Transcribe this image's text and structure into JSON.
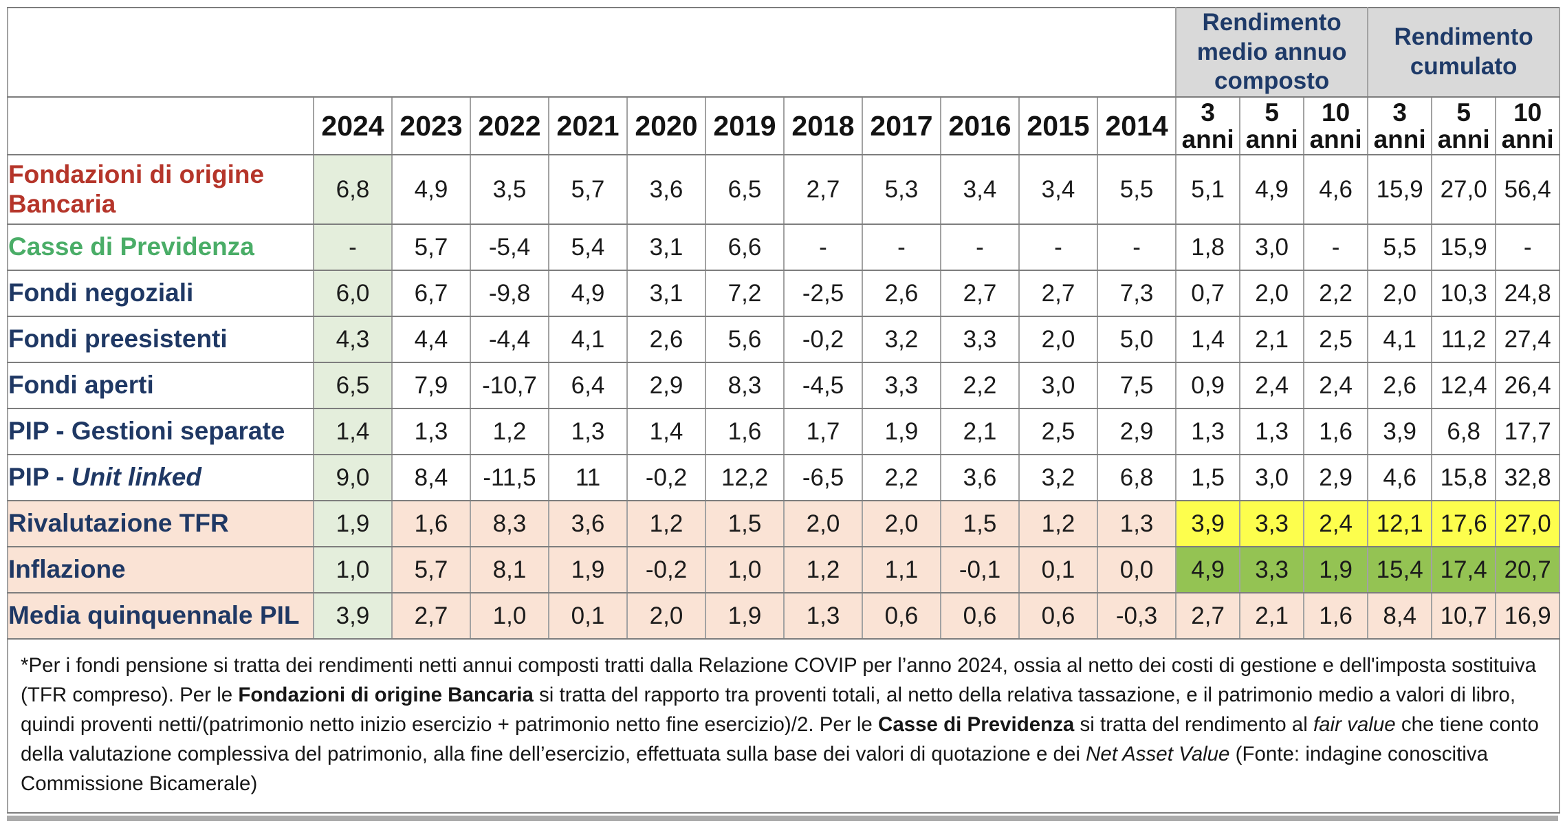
{
  "colors": {
    "navy_label": "#1f3864",
    "red_label": "#b5352a",
    "green_label": "#4aad67",
    "header_text": "#1e3a68",
    "header_bg": "#d9d9d9",
    "col_2024_bg": "#e4eedc",
    "peach_row_bg": "#fae3d5",
    "yellow_highlight": "#fdfe4d",
    "green_highlight": "#94c353"
  },
  "chart_data": {
    "type": "table",
    "title": "",
    "header_groups": [
      {
        "label": "Rendimento medio annuo composto",
        "span": 3
      },
      {
        "label": "Rendimento cumulato",
        "span": 3
      }
    ],
    "years": [
      "2024",
      "2023",
      "2022",
      "2021",
      "2020",
      "2019",
      "2018",
      "2017",
      "2016",
      "2015",
      "2014"
    ],
    "periods": [
      {
        "n": "3",
        "unit": "anni",
        "group": "Rendimento medio annuo composto"
      },
      {
        "n": "5",
        "unit": "anni",
        "group": "Rendimento medio annuo composto"
      },
      {
        "n": "10",
        "unit": "anni",
        "group": "Rendimento medio annuo composto"
      },
      {
        "n": "3",
        "unit": "anni",
        "group": "Rendimento cumulato"
      },
      {
        "n": "5",
        "unit": "anni",
        "group": "Rendimento cumulato"
      },
      {
        "n": "10",
        "unit": "anni",
        "group": "Rendimento cumulato"
      }
    ],
    "rows": [
      {
        "label": "Fondazioni di origine Bancaria",
        "label_color": "red_label",
        "band": "white",
        "highlight": null,
        "tall": true,
        "values": [
          "6,8",
          "4,9",
          "3,5",
          "5,7",
          "3,6",
          "6,5",
          "2,7",
          "5,3",
          "3,4",
          "3,4",
          "5,5",
          "5,1",
          "4,9",
          "4,6",
          "15,9",
          "27,0",
          "56,4"
        ]
      },
      {
        "label": "Casse di Previdenza",
        "label_color": "green_label",
        "band": "white",
        "highlight": null,
        "values": [
          "-",
          "5,7",
          "-5,4",
          "5,4",
          "3,1",
          "6,6",
          "-",
          "-",
          "-",
          "-",
          "-",
          "1,8",
          "3,0",
          "-",
          "5,5",
          "15,9",
          "-"
        ]
      },
      {
        "label": "Fondi negoziali",
        "label_color": "navy_label",
        "band": "white",
        "highlight": null,
        "values": [
          "6,0",
          "6,7",
          "-9,8",
          "4,9",
          "3,1",
          "7,2",
          "-2,5",
          "2,6",
          "2,7",
          "2,7",
          "7,3",
          "0,7",
          "2,0",
          "2,2",
          "2,0",
          "10,3",
          "24,8"
        ]
      },
      {
        "label": "Fondi preesistenti",
        "label_color": "navy_label",
        "band": "white",
        "highlight": null,
        "values": [
          "4,3",
          "4,4",
          "-4,4",
          "4,1",
          "2,6",
          "5,6",
          "-0,2",
          "3,2",
          "3,3",
          "2,0",
          "5,0",
          "1,4",
          "2,1",
          "2,5",
          "4,1",
          "11,2",
          "27,4"
        ]
      },
      {
        "label": "Fondi aperti",
        "label_color": "navy_label",
        "band": "white",
        "highlight": null,
        "values": [
          "6,5",
          "7,9",
          "-10,7",
          "6,4",
          "2,9",
          "8,3",
          "-4,5",
          "3,3",
          "2,2",
          "3,0",
          "7,5",
          "0,9",
          "2,4",
          "2,4",
          "2,6",
          "12,4",
          "26,4"
        ]
      },
      {
        "label": "PIP - Gestioni separate",
        "label_color": "navy_label",
        "band": "white",
        "highlight": null,
        "values": [
          "1,4",
          "1,3",
          "1,2",
          "1,3",
          "1,4",
          "1,6",
          "1,7",
          "1,9",
          "2,1",
          "2,5",
          "2,9",
          "1,3",
          "1,3",
          "1,6",
          "3,9",
          "6,8",
          "17,7"
        ]
      },
      {
        "label": "PIP - ",
        "label_italic": "Unit linked",
        "label_color": "navy_label",
        "band": "white",
        "highlight": null,
        "values": [
          "9,0",
          "8,4",
          "-11,5",
          "11",
          "-0,2",
          "12,2",
          "-6,5",
          "2,2",
          "3,6",
          "3,2",
          "6,8",
          "1,5",
          "3,0",
          "2,9",
          "4,6",
          "15,8",
          "32,8"
        ]
      },
      {
        "label": "Rivalutazione TFR",
        "label_color": "navy_label",
        "band": "peach",
        "highlight": "yellow",
        "values": [
          "1,9",
          "1,6",
          "8,3",
          "3,6",
          "1,2",
          "1,5",
          "2,0",
          "2,0",
          "1,5",
          "1,2",
          "1,3",
          "3,9",
          "3,3",
          "2,4",
          "12,1",
          "17,6",
          "27,0"
        ]
      },
      {
        "label": "Inflazione",
        "label_color": "navy_label",
        "band": "peach",
        "highlight": "green",
        "values": [
          "1,0",
          "5,7",
          "8,1",
          "1,9",
          "-0,2",
          "1,0",
          "1,2",
          "1,1",
          "-0,1",
          "0,1",
          "0,0",
          "4,9",
          "3,3",
          "1,9",
          "15,4",
          "17,4",
          "20,7"
        ]
      },
      {
        "label": "Media quinquennale PIL",
        "label_color": "navy_label",
        "band": "peach",
        "highlight": null,
        "values": [
          "3,9",
          "2,7",
          "1,0",
          "0,1",
          "2,0",
          "1,9",
          "1,3",
          "0,6",
          "0,6",
          "0,6",
          "-0,3",
          "2,7",
          "2,1",
          "1,6",
          "8,4",
          "10,7",
          "16,9"
        ]
      }
    ],
    "footnote_segments": [
      {
        "text": "*Per i fondi pensione si tratta dei rendimenti netti annui composti tratti dalla Relazione COVIP per l’anno 2024, ossia al netto dei costi di gestione e dell'imposta sostituiva (TFR compreso). Per le "
      },
      {
        "text": "Fondazioni di origine Bancaria",
        "bold": true
      },
      {
        "text": " si tratta del rapporto tra proventi totali, al netto della relativa tassazione, e il patrimonio medio a valori di libro, quindi proventi netti/(patrimonio netto inizio esercizio + patrimonio netto fine esercizio)/2. Per le "
      },
      {
        "text": "Casse di Previdenza",
        "bold": true
      },
      {
        "text": " si tratta del rendimento al "
      },
      {
        "text": "fair value",
        "italic": true
      },
      {
        "text": " che tiene conto della valutazione complessiva del patrimonio, alla fine dell’esercizio, effettuata sulla base dei valori di quotazione e dei "
      },
      {
        "text": "Net Asset Value",
        "italic": true
      },
      {
        "text": " (Fonte: indagine conoscitiva Commissione Bicamerale)"
      }
    ]
  }
}
